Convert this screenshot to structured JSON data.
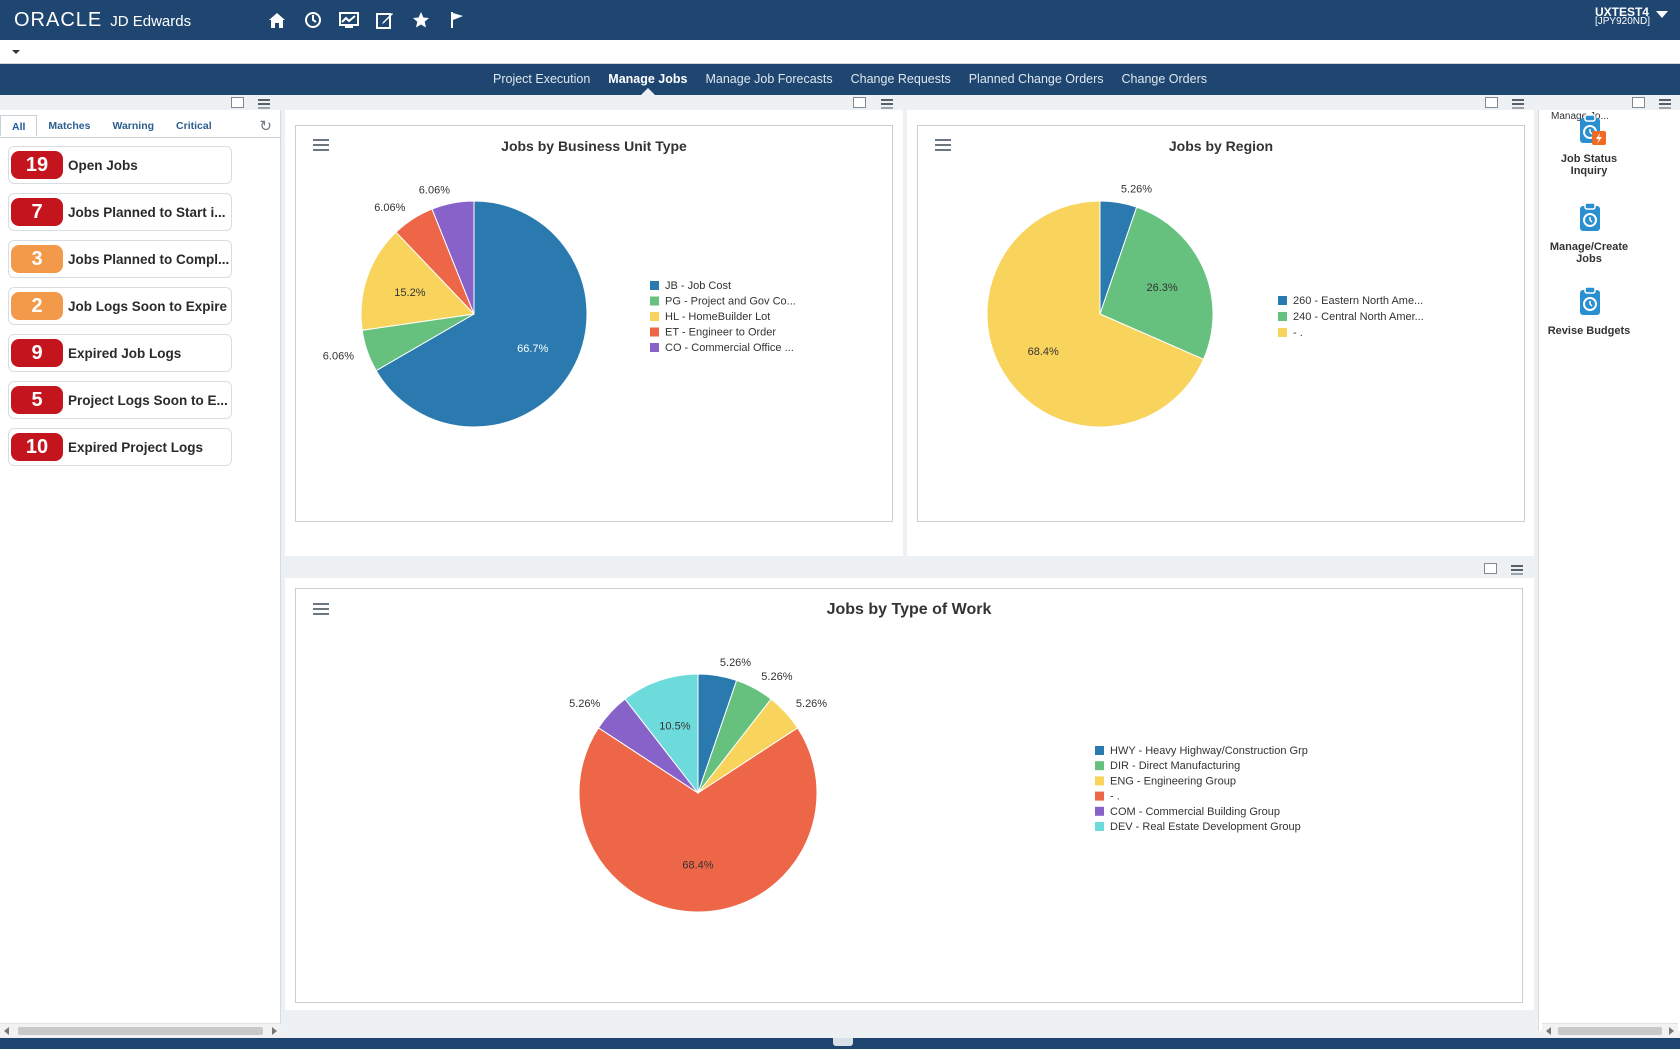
{
  "header": {
    "brand_oracle": "ORACLE",
    "brand_product": "JD Edwards",
    "icons": [
      "home-icon",
      "recent-icon",
      "dashboard-icon",
      "edit-icon",
      "favorites-icon",
      "flag-icon"
    ],
    "user_name": "UXTEST4",
    "user_env": "[JPY920ND]"
  },
  "nav": {
    "items": [
      {
        "label": "Project Execution",
        "active": false
      },
      {
        "label": "Manage Jobs",
        "active": true
      },
      {
        "label": "Manage Job Forecasts",
        "active": false
      },
      {
        "label": "Change Requests",
        "active": false
      },
      {
        "label": "Planned Change Orders",
        "active": false
      },
      {
        "label": "Change Orders",
        "active": false
      }
    ]
  },
  "watchlist": {
    "tabs": [
      "All",
      "Matches",
      "Warning",
      "Critical"
    ],
    "active_tab": "All",
    "items": [
      {
        "count": "19",
        "label": "Open Jobs",
        "level": "red"
      },
      {
        "count": "7",
        "label": "Jobs Planned to Start i...",
        "level": "red"
      },
      {
        "count": "3",
        "label": "Jobs Planned to Compl...",
        "level": "orange"
      },
      {
        "count": "2",
        "label": "Job Logs Soon to Expire",
        "level": "orange"
      },
      {
        "count": "9",
        "label": "Expired Job Logs",
        "level": "red"
      },
      {
        "count": "5",
        "label": "Project Logs Soon to E...",
        "level": "red"
      },
      {
        "count": "10",
        "label": "Expired Project Logs",
        "level": "red"
      }
    ]
  },
  "springboard": {
    "title": "Manage Jo...",
    "items": [
      {
        "label_line1": "Job Status",
        "label_line2": "Inquiry",
        "icon": "job-status-inquiry-icon"
      },
      {
        "label_line1": "Manage/Create",
        "label_line2": "Jobs",
        "icon": "manage-create-jobs-icon"
      },
      {
        "label_line1": "Revise Budgets",
        "label_line2": "",
        "icon": "revise-budgets-icon"
      }
    ]
  },
  "colors": {
    "blue": "#2a7ab0",
    "green": "#67c17e",
    "yellow": "#f8d45c",
    "red": "#ed6647",
    "purple": "#8763c9",
    "cyan": "#6ddbdb",
    "header": "#1f4670"
  },
  "chart_data": [
    {
      "type": "pie",
      "title": "Jobs by Business Unit Type",
      "series": [
        {
          "name": "JB - Job Cost",
          "value": 66.7,
          "label": "66.7%",
          "color": "#2a7ab0"
        },
        {
          "name": "PG - Project and Gov Co...",
          "value": 6.06,
          "label": "6.06%",
          "color": "#67c17e"
        },
        {
          "name": "HL - HomeBuilder Lot",
          "value": 15.2,
          "label": "15.2%",
          "color": "#f8d45c"
        },
        {
          "name": "ET - Engineer to Order",
          "value": 6.06,
          "label": "6.06%",
          "color": "#ed6647"
        },
        {
          "name": "CO - Commercial Office ...",
          "value": 6.06,
          "label": "6.06%",
          "color": "#8763c9"
        }
      ]
    },
    {
      "type": "pie",
      "title": "Jobs by Region",
      "series": [
        {
          "name": "260 - Eastern North Ame...",
          "value": 5.26,
          "label": "5.26%",
          "color": "#2a7ab0"
        },
        {
          "name": "240 - Central North Amer...",
          "value": 26.3,
          "label": "26.3%",
          "color": "#67c17e"
        },
        {
          "name": "- .",
          "value": 68.4,
          "label": "68.4%",
          "color": "#f8d45c"
        }
      ]
    },
    {
      "type": "pie",
      "title": "Jobs by Type of Work",
      "series": [
        {
          "name": "HWY - Heavy Highway/Construction Grp",
          "value": 5.26,
          "label": "5.26%",
          "color": "#2a7ab0"
        },
        {
          "name": "DIR - Direct Manufacturing",
          "value": 5.26,
          "label": "5.26%",
          "color": "#67c17e"
        },
        {
          "name": "ENG - Engineering Group",
          "value": 5.26,
          "label": "5.26%",
          "color": "#f8d45c"
        },
        {
          "name": "- .",
          "value": 68.4,
          "label": "68.4%",
          "color": "#ed6647"
        },
        {
          "name": "COM - Commercial Building Group",
          "value": 5.26,
          "label": "5.26%",
          "color": "#8763c9"
        },
        {
          "name": "DEV - Real Estate Development Group",
          "value": 10.5,
          "label": "10.5%",
          "color": "#6ddbdb"
        }
      ]
    }
  ]
}
